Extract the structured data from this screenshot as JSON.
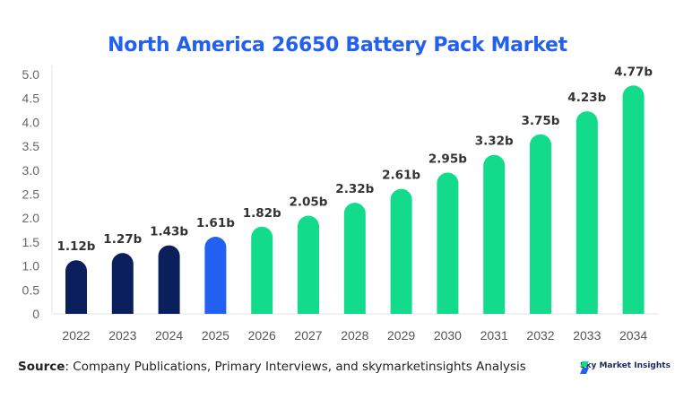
{
  "chart_data": {
    "type": "bar",
    "title": "North America 26650 Battery Pack Market",
    "categories": [
      "2022",
      "2023",
      "2024",
      "2025",
      "2026",
      "2027",
      "2028",
      "2029",
      "2030",
      "2031",
      "2032",
      "2033",
      "2034"
    ],
    "values": [
      1.12,
      1.27,
      1.43,
      1.61,
      1.82,
      2.05,
      2.32,
      2.61,
      2.95,
      3.32,
      3.75,
      4.23,
      4.77
    ],
    "data_labels": [
      "1.12b",
      "1.27b",
      "1.43b",
      "1.61b",
      "1.82b",
      "2.05b",
      "2.32b",
      "2.61b",
      "2.95b",
      "3.32b",
      "3.75b",
      "4.23b",
      "4.77b"
    ],
    "bar_colors": [
      "#0b1f5c",
      "#0b1f5c",
      "#0b1f5c",
      "#2160f0",
      "#12db8c",
      "#12db8c",
      "#12db8c",
      "#12db8c",
      "#12db8c",
      "#12db8c",
      "#12db8c",
      "#12db8c",
      "#12db8c"
    ],
    "yticks": [
      "0",
      "0.5",
      "1.0",
      "1.5",
      "2.0",
      "2.5",
      "3.0",
      "3.5",
      "4.0",
      "4.5",
      "5.0"
    ],
    "ylim": [
      0,
      5
    ],
    "xlabel": "",
    "ylabel": "",
    "grid": false
  },
  "footer": {
    "source_label": "Source",
    "source_text": ": Company Publications, Primary Interviews, and skymarketinsights Analysis",
    "logo_text": "Sky Market Insights"
  }
}
